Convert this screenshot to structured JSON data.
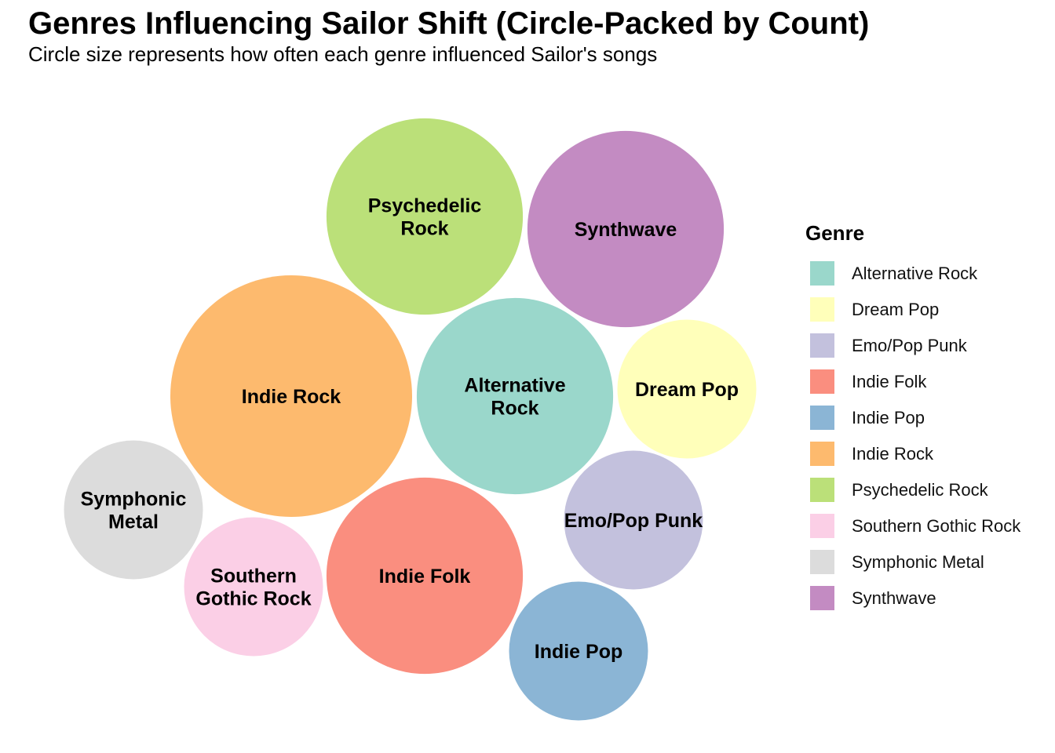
{
  "title": "Genres Influencing Sailor Shift (Circle-Packed by Count)",
  "subtitle": "Circle size represents how often each genre influenced Sailor's songs",
  "chart_data": {
    "type": "circle-packing",
    "legend_title": "Genre",
    "legend_position": "right",
    "legend": [
      {
        "name": "Alternative Rock",
        "color": "#9AD7CB"
      },
      {
        "name": "Dream Pop",
        "color": "#FFFFBA"
      },
      {
        "name": "Emo/Pop Punk",
        "color": "#C3C1DD"
      },
      {
        "name": "Indie Folk",
        "color": "#FA8E7F"
      },
      {
        "name": "Indie Pop",
        "color": "#8BB5D5"
      },
      {
        "name": "Indie Rock",
        "color": "#FDBA6E"
      },
      {
        "name": "Psychedelic Rock",
        "color": "#BBE079"
      },
      {
        "name": "Southern Gothic Rock",
        "color": "#FBCFE6"
      },
      {
        "name": "Symphonic Metal",
        "color": "#DCDCDC"
      },
      {
        "name": "Synthwave",
        "color": "#C38BC2"
      }
    ],
    "bubbles": [
      {
        "genre": "Indie Rock",
        "label": [
          "Indie Rock"
        ],
        "color": "#FDBA6E",
        "relative_count": 1.0
      },
      {
        "genre": "Alternative Rock",
        "label": [
          "Alternative",
          "Rock"
        ],
        "color": "#9AD7CB",
        "relative_count": 0.66
      },
      {
        "genre": "Psychedelic Rock",
        "label": [
          "Psychedelic",
          "Rock"
        ],
        "color": "#BBE079",
        "relative_count": 0.66
      },
      {
        "genre": "Synthwave",
        "label": [
          "Synthwave"
        ],
        "color": "#C38BC2",
        "relative_count": 0.66
      },
      {
        "genre": "Indie Folk",
        "label": [
          "Indie Folk"
        ],
        "color": "#FA8E7F",
        "relative_count": 0.66
      },
      {
        "genre": "Dream Pop",
        "label": [
          "Dream Pop"
        ],
        "color": "#FFFFBA",
        "relative_count": 0.33
      },
      {
        "genre": "Emo/Pop Punk",
        "label": [
          "Emo/Pop Punk"
        ],
        "color": "#C3C1DD",
        "relative_count": 0.33
      },
      {
        "genre": "Indie Pop",
        "label": [
          "Indie Pop"
        ],
        "color": "#8BB5D5",
        "relative_count": 0.33
      },
      {
        "genre": "Symphonic Metal",
        "label": [
          "Symphonic",
          "Metal"
        ],
        "color": "#DCDCDC",
        "relative_count": 0.33
      },
      {
        "genre": "Southern Gothic Rock",
        "label": [
          "Southern",
          "Gothic Rock"
        ],
        "color": "#FBCFE6",
        "relative_count": 0.33
      }
    ]
  }
}
